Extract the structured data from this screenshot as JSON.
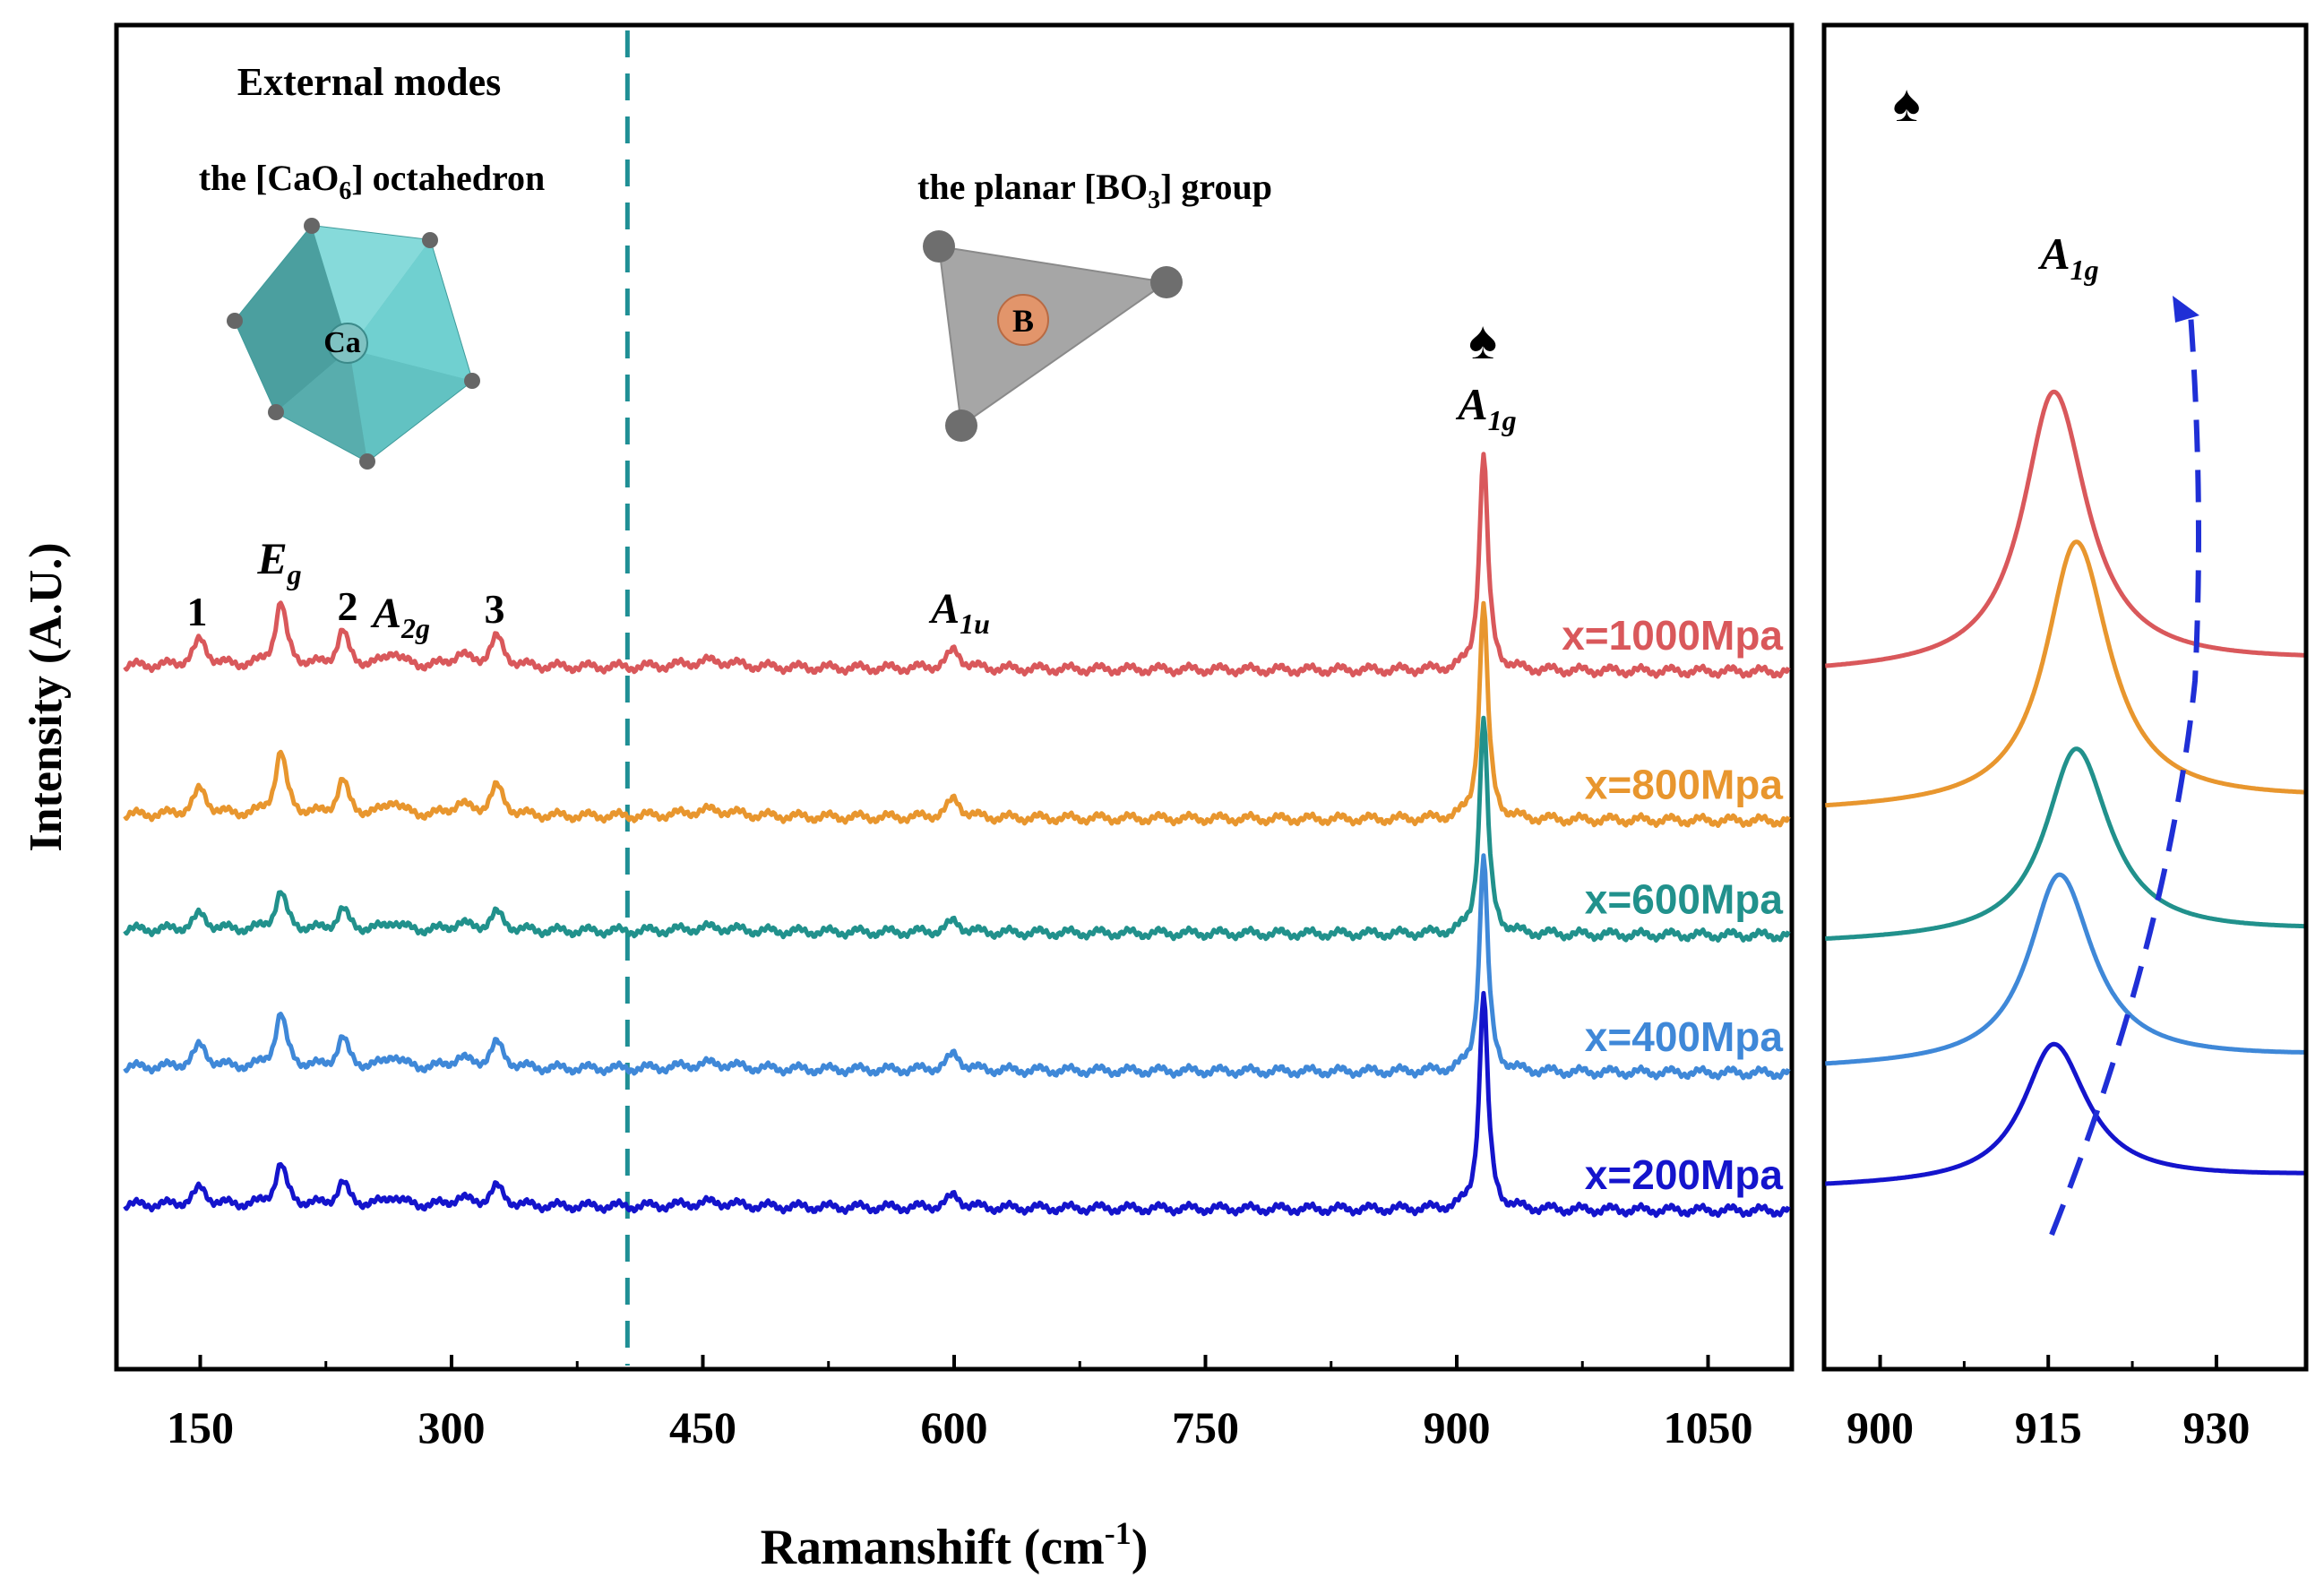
{
  "chart_data": [
    {
      "type": "line",
      "title": "",
      "xlabel": "Ramanshift (cm⁻¹)",
      "ylabel": "Intensity (A.U.)",
      "xlim": [
        100,
        1100
      ],
      "x_ticks": [
        150,
        300,
        450,
        600,
        750,
        900,
        1050
      ],
      "grid": false,
      "divider_x": 405,
      "series": [
        {
          "name": "x=1000Mpa",
          "color": "#d9585b",
          "offset": 5.6,
          "amplitude": 1.0
        },
        {
          "name": "x=800Mpa",
          "color": "#e8962e",
          "offset": 4.3,
          "amplitude": 1.0
        },
        {
          "name": "x=600Mpa",
          "color": "#21918c",
          "offset": 3.3,
          "amplitude": 0.6
        },
        {
          "name": "x=400Mpa",
          "color": "#3f88d8",
          "offset": 2.1,
          "amplitude": 0.85
        },
        {
          "name": "x=200Mpa",
          "color": "#1414cc",
          "offset": 0.9,
          "amplitude": 0.65
        }
      ],
      "peaks": [
        {
          "x": 150,
          "h": 0.22,
          "w": 5
        },
        {
          "x": 198,
          "h": 0.55,
          "w": 4
        },
        {
          "x": 235,
          "h": 0.3,
          "w": 4
        },
        {
          "x": 265,
          "h": 0.13,
          "w": 5
        },
        {
          "x": 305,
          "h": 0.1,
          "w": 6
        },
        {
          "x": 327,
          "h": 0.25,
          "w": 5
        },
        {
          "x": 455,
          "h": 0.06,
          "w": 18
        },
        {
          "x": 600,
          "h": 0.16,
          "w": 5
        },
        {
          "x": 916,
          "h": 1.9,
          "w": 3
        }
      ],
      "annotations": {
        "external_modes": "External modes",
        "octahedron_prefix": "the [CaO",
        "octahedron_sub": "6",
        "octahedron_suffix": "] octahedron",
        "ca_atom": "Ca",
        "planar_prefix": "the planar [BO",
        "planar_sub": "3",
        "planar_suffix": "] group",
        "b_atom": "B",
        "peak_1": "1",
        "peak_2": "2",
        "peak_3": "3",
        "eg_main": "E",
        "eg_sub": "g",
        "a2g_main": "A",
        "a2g_sub": "2g",
        "a1u_main": "A",
        "a1u_sub": "1u",
        "a1g_main": "A",
        "a1g_sub": "1g",
        "spade": "♠"
      }
    },
    {
      "type": "line",
      "title": "",
      "xlim": [
        895,
        938
      ],
      "x_ticks": [
        900,
        915,
        930
      ],
      "grid": false,
      "series": [
        {
          "name": "x=1000Mpa",
          "color": "#d9585b",
          "baseline": 4.35,
          "peak_x": 915.5,
          "height": 2.2
        },
        {
          "name": "x=800Mpa",
          "color": "#e8962e",
          "baseline": 3.25,
          "peak_x": 917.5,
          "height": 2.1
        },
        {
          "name": "x=600Mpa",
          "color": "#21918c",
          "baseline": 2.2,
          "peak_x": 917.5,
          "height": 1.5
        },
        {
          "name": "x=400Mpa",
          "color": "#3f88d8",
          "baseline": 1.2,
          "peak_x": 916.0,
          "height": 1.5
        },
        {
          "name": "x=200Mpa",
          "color": "#1414cc",
          "baseline": 0.25,
          "peak_x": 915.5,
          "height": 1.1
        }
      ],
      "annotations": {
        "a1g_main": "A",
        "a1g_sub": "1g",
        "spade": "♠"
      }
    }
  ]
}
